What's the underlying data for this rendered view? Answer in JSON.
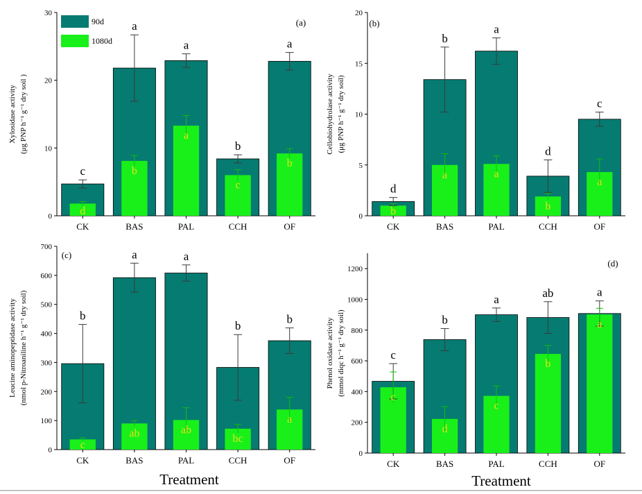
{
  "chart_data": [
    {
      "type": "bar",
      "panel_label": "(a)",
      "ylabel_line1": "Xylosidase activity",
      "ylabel_line2": "(μg PNP h⁻¹ g⁻¹ dry soil )",
      "ylim": [
        0,
        30
      ],
      "yticks": [
        0,
        10,
        20,
        30
      ],
      "categories": [
        "CK",
        "BAS",
        "PAL",
        "CCH",
        "OF"
      ],
      "series": [
        {
          "name": "90d",
          "color": "#067b71",
          "values": [
            4.7,
            21.8,
            22.9,
            8.4,
            22.8
          ],
          "errors": [
            0.6,
            4.9,
            1.0,
            0.6,
            1.3
          ],
          "letters": [
            "c",
            "a",
            "a",
            "b",
            "a"
          ]
        },
        {
          "name": "1080d",
          "color": "#19f019",
          "values": [
            1.8,
            8.1,
            13.3,
            6.0,
            9.2
          ],
          "errors": [
            0.3,
            0.8,
            1.5,
            0.8,
            0.7
          ],
          "letters": [
            "d",
            "b",
            "a",
            "c",
            "b"
          ]
        }
      ],
      "legend": {
        "position": "top-left",
        "entries": [
          "90d",
          "1080d"
        ]
      }
    },
    {
      "type": "bar",
      "panel_label": "(b)",
      "ylabel_line1": "Cellobiohydrolase activity",
      "ylabel_line2": "(μg PNP h⁻¹ g⁻¹ dry soil)",
      "ylim": [
        0,
        20
      ],
      "yticks": [
        0,
        5,
        10,
        15,
        20
      ],
      "categories": [
        "CK",
        "BAS",
        "PAL",
        "CCH",
        "OF"
      ],
      "series": [
        {
          "name": "90d",
          "color": "#067b71",
          "values": [
            1.4,
            13.4,
            16.2,
            3.9,
            9.5
          ],
          "errors": [
            0.4,
            3.2,
            1.3,
            1.6,
            0.7
          ],
          "letters": [
            "d",
            "b",
            "a",
            "d",
            "c"
          ]
        },
        {
          "name": "1080d",
          "color": "#19f019",
          "values": [
            1.0,
            5.0,
            5.1,
            1.9,
            4.3
          ],
          "errors": [
            0.2,
            1.1,
            0.8,
            0.3,
            1.3
          ],
          "letters": [
            "b",
            "a",
            "a",
            "b",
            "a"
          ]
        }
      ]
    },
    {
      "type": "bar",
      "panel_label": "(c)",
      "ylabel_line1": "Leucine aminopeptidase activity",
      "ylabel_line2": "(nmol p-Nitroaniline h⁻¹ g⁻¹ dry soil)",
      "ylim": [
        0,
        700
      ],
      "yticks": [
        0,
        100,
        200,
        300,
        400,
        500,
        600,
        700
      ],
      "categories": [
        "CK",
        "BAS",
        "PAL",
        "CCH",
        "OF"
      ],
      "series": [
        {
          "name": "90d",
          "color": "#067b71",
          "values": [
            296,
            592,
            608,
            283,
            375
          ],
          "errors": [
            135,
            50,
            28,
            113,
            44
          ],
          "letters": [
            "b",
            "a",
            "a",
            "b",
            "b"
          ]
        },
        {
          "name": "1080d",
          "color": "#19f019",
          "values": [
            35,
            90,
            102,
            72,
            138
          ],
          "errors": [
            5,
            10,
            42,
            15,
            42
          ],
          "letters": [
            "c",
            "ab",
            "ab",
            "bc",
            "a"
          ]
        }
      ],
      "xlabel": "Treatment"
    },
    {
      "type": "bar",
      "panel_label": "(d)",
      "ylabel_line1": "Phenol oxidase activity",
      "ylabel_line2": "(mmol diqc h⁻¹ g⁻¹ dry soil)",
      "ylim": [
        0,
        1300
      ],
      "yticks": [
        0,
        200,
        400,
        600,
        800,
        1000,
        1200
      ],
      "categories": [
        "CK",
        "BAS",
        "PAL",
        "CCH",
        "OF"
      ],
      "series": [
        {
          "name": "90d",
          "color": "#067b71",
          "values": [
            467,
            738,
            900,
            882,
            908
          ],
          "errors": [
            115,
            72,
            44,
            103,
            82
          ],
          "letters": [
            "c",
            "b",
            "a",
            "ab",
            "a"
          ]
        },
        {
          "name": "1080d",
          "color": "#19f019",
          "values": [
            428,
            222,
            372,
            645,
            902
          ],
          "errors": [
            100,
            80,
            65,
            55,
            40
          ],
          "letters": [
            "c",
            "d",
            "c",
            "b",
            "a"
          ]
        }
      ],
      "xlabel": "Treatment"
    }
  ]
}
